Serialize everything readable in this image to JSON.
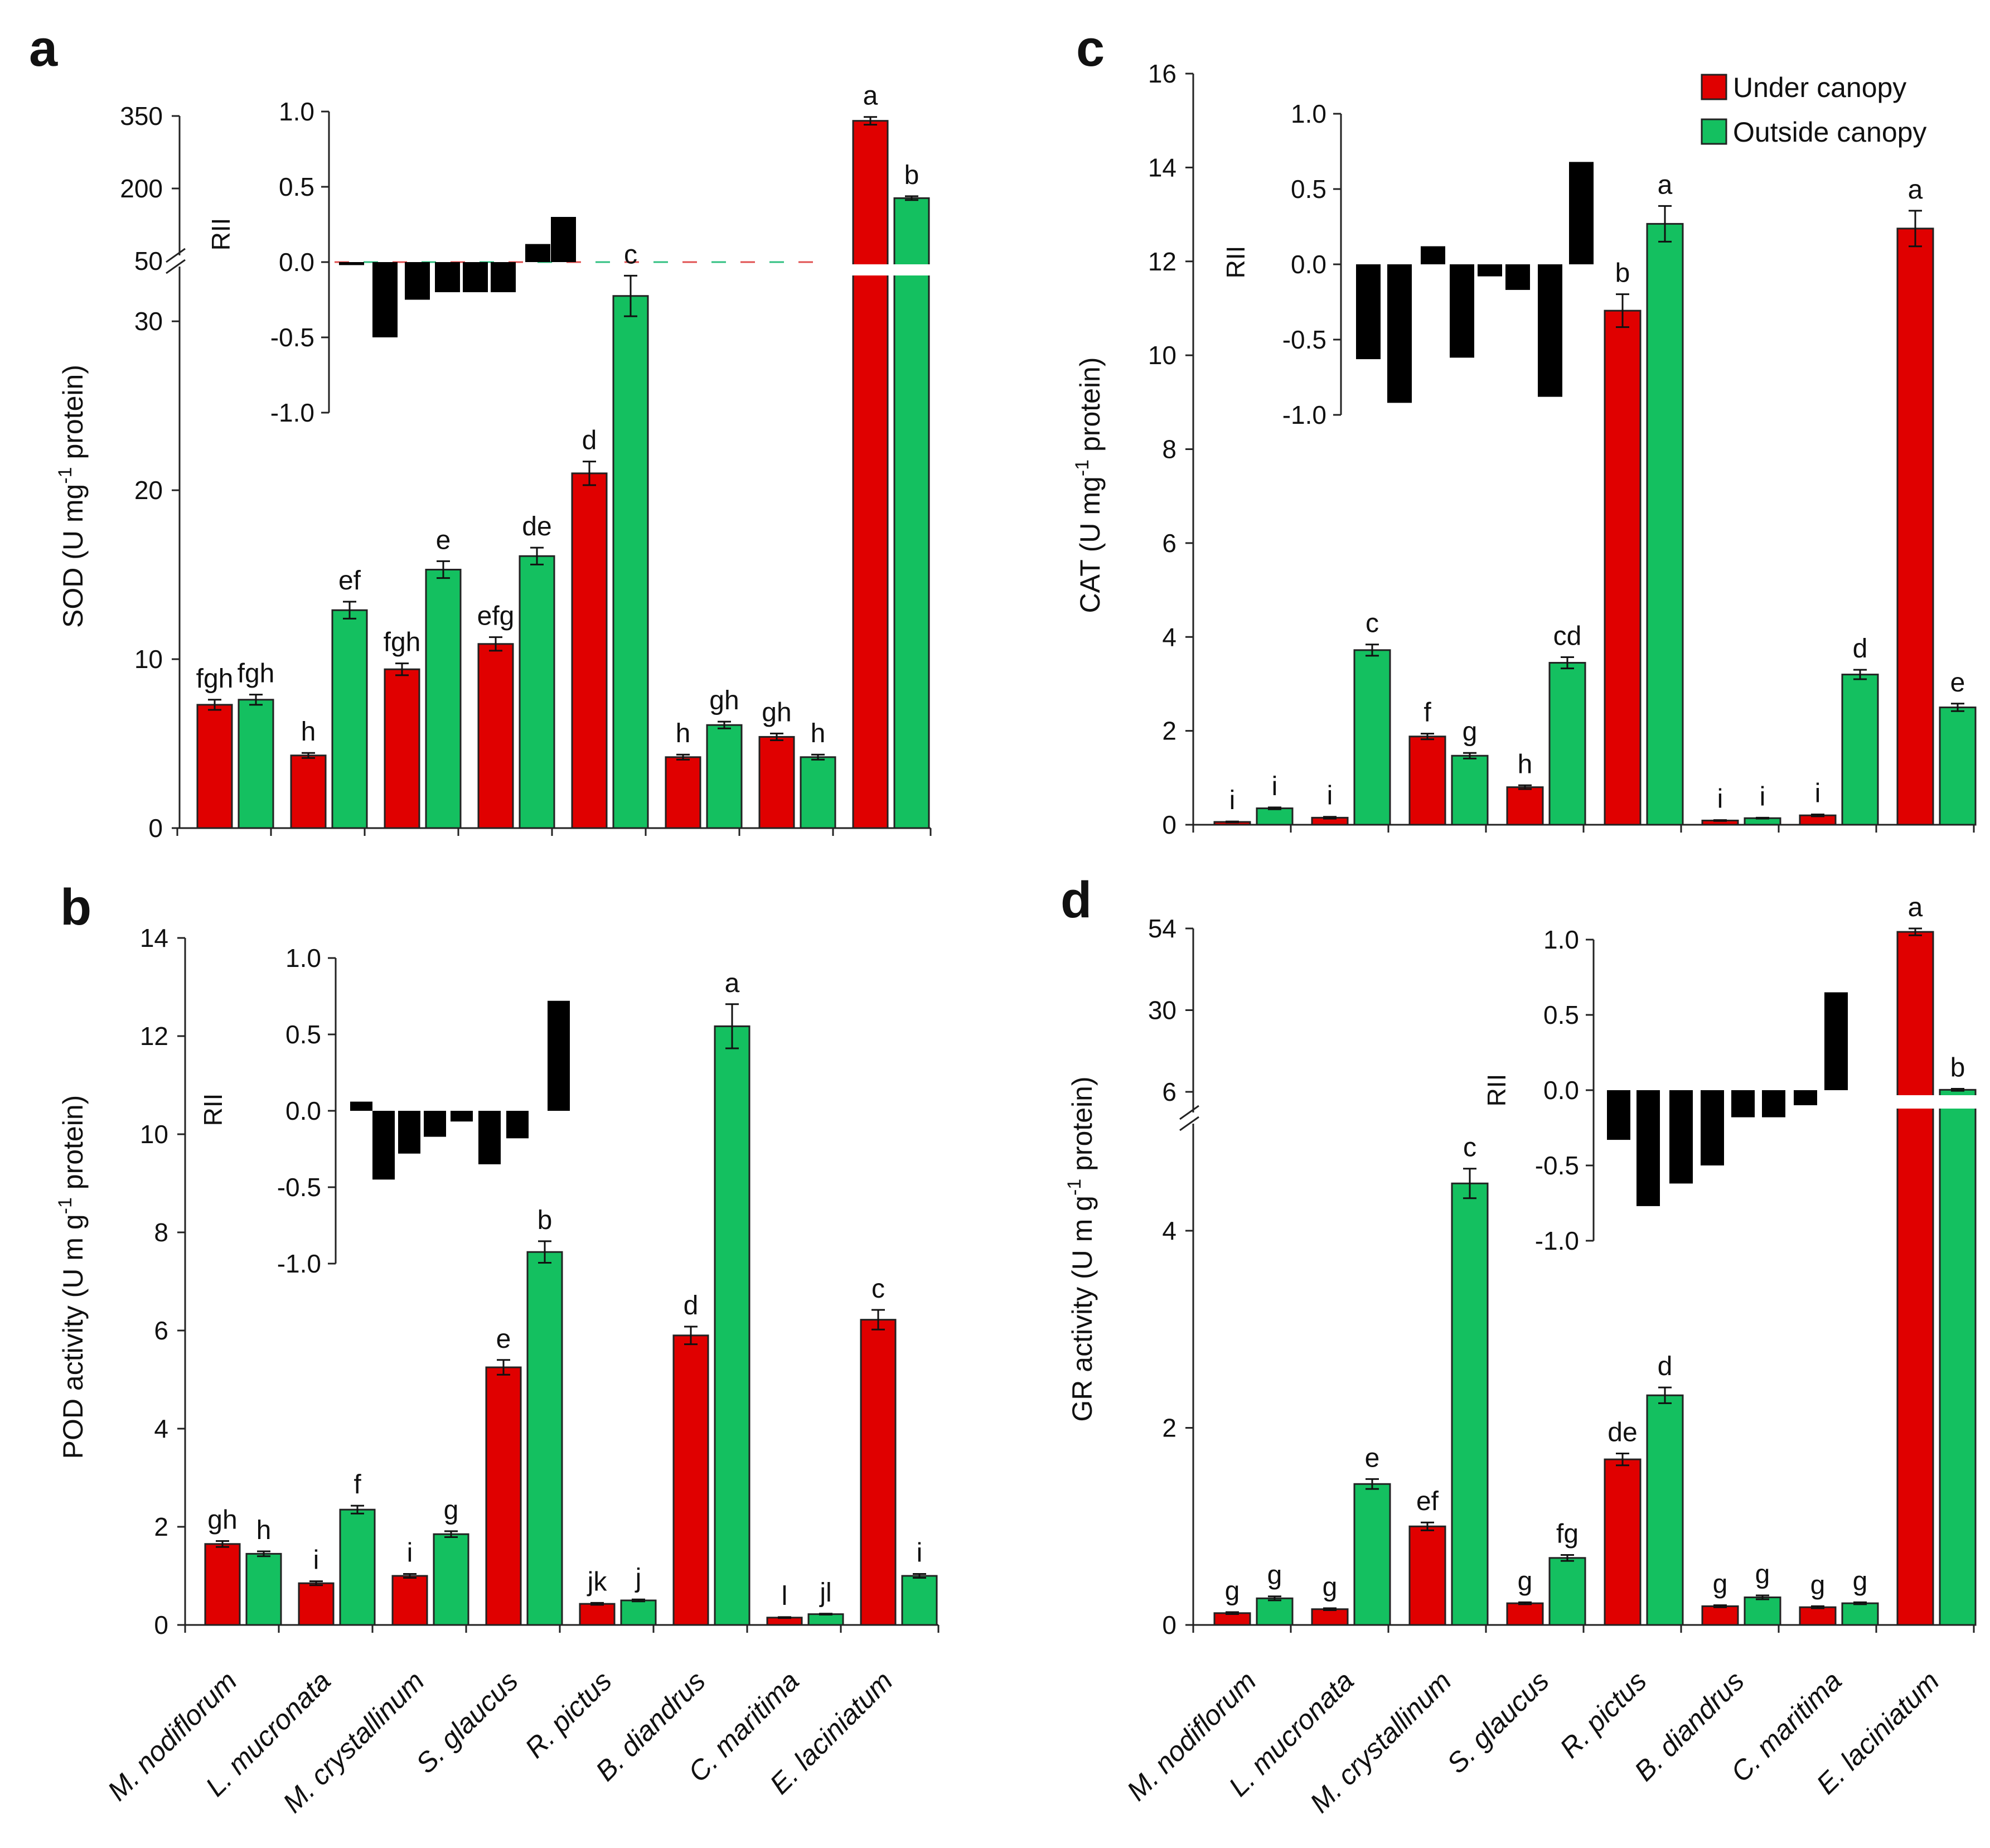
{
  "figure_labels": {
    "a": "a",
    "b": "b",
    "c": "c",
    "d": "d"
  },
  "legend": {
    "under": "Under canopy",
    "outside": "Outside canopy"
  },
  "species": [
    "M. nodiflorum",
    "L. mucronata",
    "M. crystallinum",
    "S. glaucus",
    "R. pictus",
    "B. diandrus",
    "C. maritima",
    "E. laciniatum"
  ],
  "colors": {
    "under": "#e00000",
    "outside": "#14c060",
    "rii": "#000000",
    "axis": "#222222"
  },
  "rii_label": "RII",
  "chart_data": [
    {
      "panel": "a",
      "type": "bar",
      "ylabel": "SOD (U mg-1 protein)",
      "ylabel_main": "SOD (U mg",
      "ylabel_sup": "-1",
      "ylabel_end": " protein)",
      "categories": [
        "M. nodiflorum",
        "L. mucronata",
        "M. crystallinum",
        "S. glaucus",
        "R. pictus",
        "B. diandrus",
        "C. maritima",
        "E. laciniatum"
      ],
      "series": [
        {
          "name": "Under canopy",
          "values": [
            7.3,
            4.3,
            9.4,
            10.9,
            21.0,
            4.2,
            5.4,
            340
          ],
          "errors": [
            0.3,
            0.15,
            0.35,
            0.4,
            0.7,
            0.15,
            0.2,
            8
          ],
          "letters": [
            "fgh",
            "h",
            "fgh",
            "efg",
            "d",
            "h",
            "gh",
            "a"
          ]
        },
        {
          "name": "Outside canopy",
          "values": [
            7.6,
            12.9,
            15.3,
            16.1,
            31.5,
            6.1,
            4.2,
            180
          ],
          "errors": [
            0.3,
            0.5,
            0.5,
            0.5,
            1.2,
            0.2,
            0.15,
            4
          ],
          "letters": [
            "fgh",
            "ef",
            "e",
            "de",
            "c",
            "gh",
            "h",
            "b"
          ]
        }
      ],
      "y_ticks_lower": [
        "0",
        "10",
        "20",
        "30"
      ],
      "y_ticks_upper": [
        "50",
        "200",
        "350"
      ],
      "ylim_lower": [
        0,
        34
      ],
      "ylim_upper": [
        50,
        350
      ],
      "rii": {
        "values": [
          -0.02,
          -0.5,
          -0.25,
          -0.2,
          -0.2,
          -0.2,
          0.12,
          0.3
        ],
        "ylim": [
          -1.0,
          1.0
        ],
        "ticks": [
          "1.0",
          "0.5",
          "0.0",
          "-0.5",
          "-1.0"
        ]
      }
    },
    {
      "panel": "b",
      "type": "bar",
      "ylabel": "POD activity (U m g-1 protein)",
      "ylabel_main": "POD activity (U m g",
      "ylabel_sup": "-1",
      "ylabel_end": " protein)",
      "categories": [
        "M. nodiflorum",
        "L. mucronata",
        "M. crystallinum",
        "S. glaucus",
        "R. pictus",
        "B. diandrus",
        "C. maritima",
        "E. laciniatum"
      ],
      "series": [
        {
          "name": "Under canopy",
          "values": [
            1.65,
            0.85,
            1.0,
            5.25,
            0.43,
            5.9,
            0.15,
            6.22
          ],
          "errors": [
            0.06,
            0.04,
            0.04,
            0.15,
            0.02,
            0.18,
            0.01,
            0.2
          ],
          "letters": [
            "gh",
            "i",
            "i",
            "e",
            "jk",
            "d",
            "l",
            "c"
          ]
        },
        {
          "name": "Outside canopy",
          "values": [
            1.45,
            2.35,
            1.85,
            7.6,
            0.5,
            12.2,
            0.22,
            1.0
          ],
          "errors": [
            0.05,
            0.08,
            0.06,
            0.22,
            0.02,
            0.45,
            0.01,
            0.04
          ],
          "letters": [
            "h",
            "f",
            "g",
            "b",
            "j",
            "a",
            "jl",
            "i"
          ]
        }
      ],
      "y_ticks": [
        "0",
        "2",
        "4",
        "6",
        "8",
        "10",
        "12",
        "14"
      ],
      "ylim": [
        0,
        14
      ],
      "rii": {
        "values": [
          0.06,
          -0.45,
          -0.28,
          -0.17,
          -0.07,
          -0.35,
          -0.18,
          0.72
        ],
        "ylim": [
          -1.0,
          1.0
        ],
        "ticks": [
          "1.0",
          "0.5",
          "0.0",
          "-0.5",
          "-1.0"
        ]
      }
    },
    {
      "panel": "c",
      "type": "bar",
      "ylabel": "CAT (U mg-1 protein)",
      "ylabel_main": "CAT (U mg",
      "ylabel_sup": "-1",
      "ylabel_end": " protein)",
      "categories": [
        "M. nodiflorum",
        "L. mucronata",
        "M. crystallinum",
        "S. glaucus",
        "R. pictus",
        "B. diandrus",
        "C. maritima",
        "E. laciniatum"
      ],
      "series": [
        {
          "name": "Under canopy",
          "values": [
            0.06,
            0.15,
            1.88,
            0.8,
            10.95,
            0.09,
            0.2,
            12.7
          ],
          "errors": [
            0.01,
            0.02,
            0.06,
            0.04,
            0.35,
            0.01,
            0.02,
            0.38
          ],
          "letters": [
            "i",
            "i",
            "f",
            "h",
            "b",
            "i",
            "i",
            "a"
          ]
        },
        {
          "name": "Outside canopy",
          "values": [
            0.35,
            3.72,
            1.47,
            3.45,
            12.8,
            0.14,
            3.2,
            2.5
          ],
          "errors": [
            0.02,
            0.12,
            0.06,
            0.12,
            0.38,
            0.01,
            0.1,
            0.08
          ],
          "letters": [
            "i",
            "c",
            "g",
            "cd",
            "a",
            "i",
            "d",
            "e"
          ]
        }
      ],
      "y_ticks": [
        "0",
        "2",
        "4",
        "6",
        "8",
        "10",
        "12",
        "14",
        "16"
      ],
      "ylim": [
        0,
        16
      ],
      "rii": {
        "values": [
          -0.63,
          -0.92,
          0.12,
          -0.62,
          -0.08,
          -0.17,
          -0.88,
          0.68
        ],
        "ylim": [
          -1.0,
          1.0
        ],
        "ticks": [
          "1.0",
          "0.5",
          "0.0",
          "-0.5",
          "-1.0"
        ]
      }
    },
    {
      "panel": "d",
      "type": "bar",
      "ylabel": "GR activity (U m g-1 protein)",
      "ylabel_main": "GR activity (U m g",
      "ylabel_sup": "-1",
      "ylabel_end": " protein)",
      "categories": [
        "M. nodiflorum",
        "L. mucronata",
        "M. crystallinum",
        "S. glaucus",
        "R. pictus",
        "B. diandrus",
        "C. maritima",
        "E. laciniatum"
      ],
      "series": [
        {
          "name": "Under canopy",
          "values": [
            0.12,
            0.16,
            1.0,
            0.22,
            1.68,
            0.19,
            0.18,
            53
          ],
          "errors": [
            0.01,
            0.01,
            0.04,
            0.01,
            0.06,
            0.01,
            0.01,
            1.0
          ],
          "letters": [
            "g",
            "g",
            "ef",
            "g",
            "de",
            "g",
            "g",
            "a"
          ]
        },
        {
          "name": "Outside canopy",
          "values": [
            0.27,
            1.43,
            4.48,
            0.68,
            2.33,
            0.28,
            0.22,
            6.6
          ],
          "errors": [
            0.02,
            0.05,
            0.15,
            0.03,
            0.08,
            0.02,
            0.01,
            0.3
          ],
          "letters": [
            "g",
            "e",
            "c",
            "fg",
            "d",
            "g",
            "g",
            "b"
          ]
        }
      ],
      "y_ticks_lower": [
        "0",
        "2",
        "4"
      ],
      "y_ticks_upper": [
        "6",
        "30",
        "54"
      ],
      "ylim_lower": [
        0,
        4.9
      ],
      "ylim_upper": [
        6,
        54
      ],
      "rii": {
        "values": [
          -0.33,
          -0.77,
          -0.62,
          -0.5,
          -0.18,
          -0.18,
          -0.1,
          0.65
        ],
        "ylim": [
          -1.0,
          1.0
        ],
        "ticks": [
          "1.0",
          "0.5",
          "0.0",
          "-0.5",
          "-1.0"
        ]
      }
    }
  ]
}
